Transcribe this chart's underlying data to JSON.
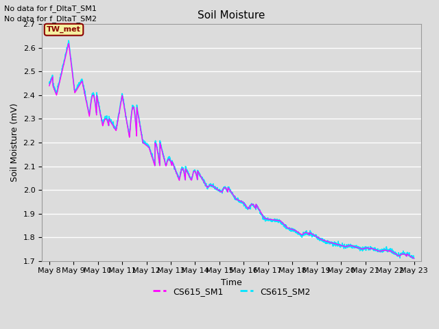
{
  "title": "Soil Moisture",
  "xlabel": "Time",
  "ylabel": "Soil Moisture (mV)",
  "ylim": [
    1.7,
    2.7
  ],
  "background_color": "#dcdcdc",
  "plot_bg_color": "#dcdcdc",
  "grid_color": "white",
  "line1_color": "#ff00ff",
  "line2_color": "#00e5ff",
  "line1_label": "CS615_SM1",
  "line2_label": "CS615_SM2",
  "no_data_text1": "No data for f_DltaT_SM1",
  "no_data_text2": "No data for f_DltaT_SM2",
  "tw_met_label": "TW_met",
  "tw_met_bg": "#f5f0a0",
  "tw_met_border": "#8b0000",
  "x_tick_labels": [
    "May 8",
    "May 9",
    "May 10",
    "May 11",
    "May 12",
    "May 13",
    "May 14",
    "May 15",
    "May 16",
    "May 17",
    "May 18",
    "May 19",
    "May 20",
    "May 21",
    "May 22",
    "May 23"
  ],
  "x_tick_positions": [
    0,
    1,
    2,
    3,
    4,
    5,
    6,
    7,
    8,
    9,
    10,
    11,
    12,
    13,
    14,
    15
  ],
  "y_ticks": [
    1.7,
    1.8,
    1.9,
    2.0,
    2.1,
    2.2,
    2.3,
    2.4,
    2.5,
    2.6,
    2.7
  ]
}
